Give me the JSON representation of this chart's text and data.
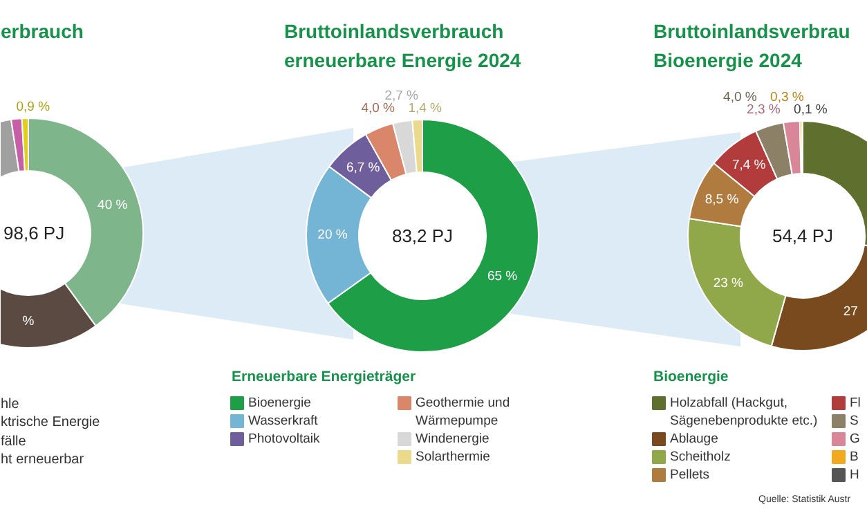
{
  "chart_data": [
    {
      "type": "donut",
      "title": "erbrauch",
      "categories": [
        null,
        null,
        null,
        null,
        null
      ],
      "values": [
        40,
        20,
        37.6,
        1.5,
        0.9
      ],
      "colors": [
        "#7fb58a",
        "#5a4a42",
        "#a0a0a0",
        "#c65fa6",
        "#e2cf1a"
      ],
      "value_labels": [
        "40 %",
        "%",
        null,
        null,
        "0,9 %"
      ],
      "annotations": [
        "98,6 PJ",
        "hle",
        "ktrische Energie",
        "fälle",
        "ht erneuerbar"
      ]
    },
    {
      "type": "donut",
      "title": "Bruttoinlandsverbrauch\nerneuerbare Energie 2024",
      "categories": [
        "Bioenergie",
        "Wasserkraft",
        "Photovoltaik",
        "Geothermie und Wärmepumpe",
        "Windenergie",
        "Solarthermie"
      ],
      "values": [
        65,
        20,
        6.7,
        4.0,
        2.7,
        1.4
      ],
      "colors": [
        "#1f9e48",
        "#74b4d4",
        "#6e5f9c",
        "#d9866a",
        "#d8d8d8",
        "#ebd98c"
      ],
      "value_labels": [
        "65 %",
        "20 %",
        "6,7 %",
        "4,0 %",
        "2,7 %",
        "1,4 %"
      ],
      "legend": "bottom",
      "legend_title": "Erneuerbare Energieträger",
      "annotations": [
        "83,2 PJ"
      ]
    },
    {
      "type": "donut",
      "title": "Bruttoinlandsverbrau\nBioenergie 2024",
      "categories": [
        "Holzabfall (Hackgut, Sägenebenprodukte etc.)",
        "Ablauge",
        "Scheitholz",
        "Pellets",
        "Fl",
        "S",
        "G",
        "B",
        "H"
      ],
      "values": [
        27.4,
        27,
        23,
        8.5,
        7.4,
        4.0,
        2.3,
        0.3,
        0.1
      ],
      "colors": [
        "#5f6f2e",
        "#7a4a1f",
        "#90a84a",
        "#b07b3f",
        "#b23b3c",
        "#8c8066",
        "#d98699",
        "#f2a91e",
        "#555555"
      ],
      "value_labels": [
        null,
        "27",
        "23 %",
        "8,5 %",
        "7,4 %",
        "4,0 %",
        "2,3 %",
        "0,3 %",
        "0,1 %"
      ],
      "legend": "bottom",
      "legend_title": "Bioenergie",
      "annotations": [
        "54,4 PJ",
        "Quelle: Statistik Austr"
      ]
    }
  ]
}
